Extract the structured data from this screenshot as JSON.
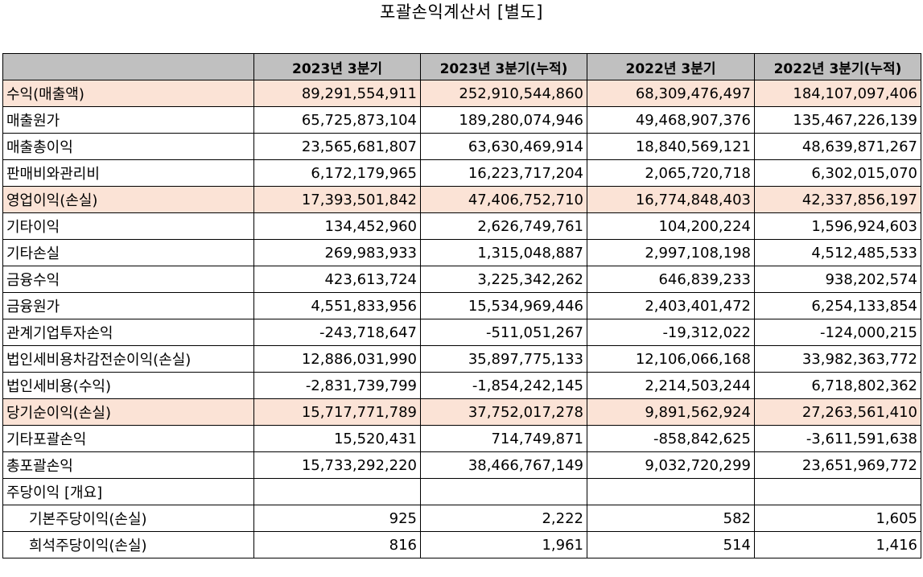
{
  "title": "포괄손익계산서 [별도]",
  "colors": {
    "header_bg": "#c0c0c0",
    "highlight_bg": "#fbe3d6"
  },
  "columns": [
    "",
    "2023년 3분기",
    "2023년 3분기(누적)",
    "2022년 3분기",
    "2022년 3분기(누적)"
  ],
  "rows": [
    {
      "label": "수익(매출액)",
      "values": [
        "89,291,554,911",
        "252,910,544,860",
        "68,309,476,497",
        "184,107,097,406"
      ],
      "highlight": true,
      "indent": false
    },
    {
      "label": "매출원가",
      "values": [
        "65,725,873,104",
        "189,280,074,946",
        "49,468,907,376",
        "135,467,226,139"
      ],
      "highlight": false,
      "indent": false
    },
    {
      "label": "매출총이익",
      "values": [
        "23,565,681,807",
        "63,630,469,914",
        "18,840,569,121",
        "48,639,871,267"
      ],
      "highlight": false,
      "indent": false
    },
    {
      "label": "판매비와관리비",
      "values": [
        "6,172,179,965",
        "16,223,717,204",
        "2,065,720,718",
        "6,302,015,070"
      ],
      "highlight": false,
      "indent": false
    },
    {
      "label": "영업이익(손실)",
      "values": [
        "17,393,501,842",
        "47,406,752,710",
        "16,774,848,403",
        "42,337,856,197"
      ],
      "highlight": true,
      "indent": false
    },
    {
      "label": "기타이익",
      "values": [
        "134,452,960",
        "2,626,749,761",
        "104,200,224",
        "1,596,924,603"
      ],
      "highlight": false,
      "indent": false
    },
    {
      "label": "기타손실",
      "values": [
        "269,983,933",
        "1,315,048,887",
        "2,997,108,198",
        "4,512,485,533"
      ],
      "highlight": false,
      "indent": false
    },
    {
      "label": "금융수익",
      "values": [
        "423,613,724",
        "3,225,342,262",
        "646,839,233",
        "938,202,574"
      ],
      "highlight": false,
      "indent": false
    },
    {
      "label": "금융원가",
      "values": [
        "4,551,833,956",
        "15,534,969,446",
        "2,403,401,472",
        "6,254,133,854"
      ],
      "highlight": false,
      "indent": false
    },
    {
      "label": "관계기업투자손익",
      "values": [
        "-243,718,647",
        "-511,051,267",
        "-19,312,022",
        "-124,000,215"
      ],
      "highlight": false,
      "indent": false
    },
    {
      "label": "법인세비용차감전순이익(손실)",
      "values": [
        "12,886,031,990",
        "35,897,775,133",
        "12,106,066,168",
        "33,982,363,772"
      ],
      "highlight": false,
      "indent": false
    },
    {
      "label": "법인세비용(수익)",
      "values": [
        "-2,831,739,799",
        "-1,854,242,145",
        "2,214,503,244",
        "6,718,802,362"
      ],
      "highlight": false,
      "indent": false
    },
    {
      "label": "당기순이익(손실)",
      "values": [
        "15,717,771,789",
        "37,752,017,278",
        "9,891,562,924",
        "27,263,561,410"
      ],
      "highlight": true,
      "indent": false
    },
    {
      "label": "기타포괄손익",
      "values": [
        "15,520,431",
        "714,749,871",
        "-858,842,625",
        "-3,611,591,638"
      ],
      "highlight": false,
      "indent": false
    },
    {
      "label": "총포괄손익",
      "values": [
        "15,733,292,220",
        "38,466,767,149",
        "9,032,720,299",
        "23,651,969,772"
      ],
      "highlight": false,
      "indent": false
    },
    {
      "label": "주당이익 [개요]",
      "values": [
        "",
        "",
        "",
        ""
      ],
      "highlight": false,
      "indent": false
    },
    {
      "label": "기본주당이익(손실)",
      "values": [
        "925",
        "2,222",
        "582",
        "1,605"
      ],
      "highlight": false,
      "indent": true
    },
    {
      "label": "희석주당이익(손실)",
      "values": [
        "816",
        "1,961",
        "514",
        "1,416"
      ],
      "highlight": false,
      "indent": true
    }
  ]
}
